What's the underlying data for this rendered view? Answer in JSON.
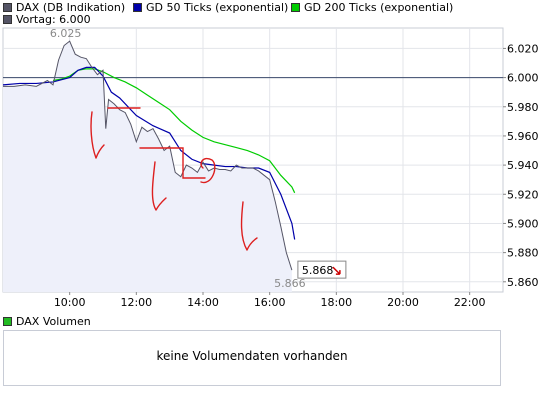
{
  "legend": {
    "items": [
      {
        "label": "DAX (DB Indikation)",
        "color": "#555566"
      },
      {
        "label": "GD 50 Ticks (exponential)",
        "color": "#0000aa"
      },
      {
        "label": "GD 200 Ticks (exponential)",
        "color": "#00cc00"
      },
      {
        "label": "Vortag: 6.000",
        "color": "#555566"
      }
    ]
  },
  "volume": {
    "legend_label": "DAX Volumen",
    "legend_color": "#22bb22",
    "message": "keine Volumendaten vorhanden"
  },
  "chart_data": {
    "type": "line",
    "x_ticks": [
      "10:00",
      "12:00",
      "14:00",
      "16:00",
      "18:00",
      "20:00",
      "22:00"
    ],
    "y_ticks": [
      "6.020",
      "6.000",
      "5.980",
      "5.960",
      "5.940",
      "5.920",
      "5.900",
      "5.880",
      "5.860"
    ],
    "xlim": [
      "08:00",
      "23:00"
    ],
    "ylim": [
      5.853,
      6.034
    ],
    "previous_close": 6.0,
    "high_label": "6.025",
    "low_label": "5.866",
    "last_value_label": "5.868",
    "last_value_color": "#cc0000",
    "series": [
      {
        "name": "DAX (DB Indikation)",
        "color": "#555566",
        "x": [
          "08:00",
          "08:20",
          "08:40",
          "09:00",
          "09:20",
          "09:30",
          "09:40",
          "09:50",
          "10:00",
          "10:10",
          "10:20",
          "10:30",
          "10:40",
          "10:50",
          "11:00",
          "11:05",
          "11:10",
          "11:20",
          "11:30",
          "11:40",
          "11:50",
          "12:00",
          "12:10",
          "12:20",
          "12:30",
          "12:40",
          "12:50",
          "13:00",
          "13:10",
          "13:20",
          "13:30",
          "13:40",
          "13:50",
          "14:00",
          "14:10",
          "14:20",
          "14:30",
          "14:40",
          "14:50",
          "15:00",
          "15:10",
          "15:20",
          "15:30",
          "15:40",
          "15:50",
          "16:00",
          "16:10",
          "16:20",
          "16:30",
          "16:40"
        ],
        "values": [
          5.994,
          5.994,
          5.995,
          5.994,
          5.998,
          5.995,
          6.012,
          6.022,
          6.025,
          6.016,
          6.014,
          6.013,
          6.007,
          6.002,
          6.005,
          5.965,
          5.985,
          5.982,
          5.978,
          5.976,
          5.968,
          5.956,
          5.966,
          5.963,
          5.965,
          5.958,
          5.95,
          5.953,
          5.935,
          5.932,
          5.94,
          5.938,
          5.935,
          5.942,
          5.936,
          5.938,
          5.937,
          5.937,
          5.936,
          5.94,
          5.938,
          5.938,
          5.938,
          5.936,
          5.933,
          5.93,
          5.915,
          5.898,
          5.88,
          5.868
        ]
      },
      {
        "name": "GD 50 Ticks (exponential)",
        "color": "#0000aa",
        "x": [
          "08:00",
          "08:30",
          "09:00",
          "09:30",
          "10:00",
          "10:15",
          "10:30",
          "10:45",
          "11:00",
          "11:15",
          "11:30",
          "12:00",
          "12:30",
          "13:00",
          "13:20",
          "13:40",
          "14:00",
          "14:20",
          "14:40",
          "15:00",
          "15:20",
          "15:40",
          "16:00",
          "16:20",
          "16:40",
          "16:45"
        ],
        "values": [
          5.995,
          5.996,
          5.996,
          5.997,
          6.0,
          6.005,
          6.007,
          6.007,
          6.001,
          5.99,
          5.986,
          5.974,
          5.967,
          5.962,
          5.95,
          5.944,
          5.941,
          5.94,
          5.939,
          5.939,
          5.938,
          5.938,
          5.935,
          5.92,
          5.9,
          5.889
        ]
      },
      {
        "name": "GD 200 Ticks (exponential)",
        "color": "#00cc00",
        "x": [
          "09:30",
          "09:45",
          "10:00",
          "10:15",
          "10:30",
          "10:45",
          "11:00",
          "11:20",
          "11:40",
          "12:00",
          "12:20",
          "12:40",
          "13:00",
          "13:20",
          "13:40",
          "14:00",
          "14:20",
          "14:40",
          "15:00",
          "15:20",
          "15:40",
          "16:00",
          "16:20",
          "16:40",
          "16:45"
        ],
        "values": [
          5.998,
          5.999,
          6.001,
          6.005,
          6.006,
          6.006,
          6.004,
          6.0,
          5.997,
          5.993,
          5.988,
          5.983,
          5.978,
          5.97,
          5.964,
          5.959,
          5.956,
          5.954,
          5.952,
          5.95,
          5.947,
          5.943,
          5.933,
          5.925,
          5.921
        ]
      }
    ]
  }
}
